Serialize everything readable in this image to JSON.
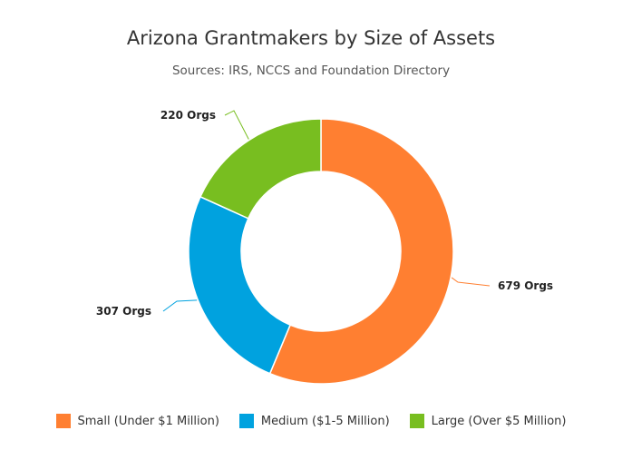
{
  "chart_data": {
    "type": "pie",
    "variant": "donut",
    "title": "Arizona Grantmakers by Size of Assets",
    "subtitle": "Sources: IRS, NCCS and Foundation Directory",
    "legend_position": "bottom",
    "series": [
      {
        "name": "Small (Under $1 Million)",
        "value": 679,
        "label": "679 Orgs",
        "color": "#FF7F31"
      },
      {
        "name": "Medium ($1-5 Million)",
        "value": 307,
        "label": "307 Orgs",
        "color": "#00A2DF"
      },
      {
        "name": "Large (Over $5 Million)",
        "value": 220,
        "label": "220 Orgs",
        "color": "#78BE20"
      }
    ]
  }
}
